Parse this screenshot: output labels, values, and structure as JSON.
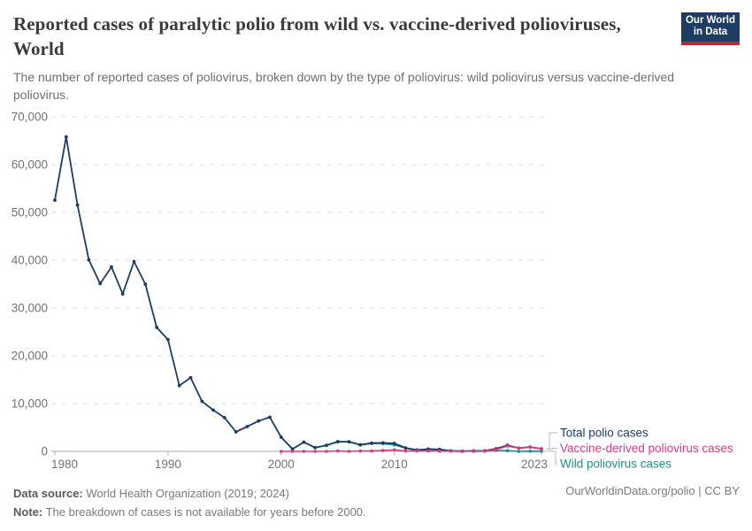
{
  "header": {
    "title": "Reported cases of paralytic polio from wild vs. vaccine-derived polioviruses, World",
    "subtitle": "The number of reported cases of poliovirus, broken down by the type of poliovirus: wild poliovirus versus vaccine-derived poliovirus.",
    "logo": {
      "line1": "Our World",
      "line2": "in Data",
      "bg_color": "#1d3d63",
      "accent_color": "#c0262c"
    }
  },
  "chart_data": {
    "type": "line",
    "title": "Reported cases of paralytic polio from wild vs. vaccine-derived polioviruses, World",
    "xlabel": "",
    "ylabel": "",
    "xlim": [
      1980,
      2023
    ],
    "ylim": [
      0,
      70000
    ],
    "xticks": [
      1980,
      1990,
      2000,
      2010,
      2023
    ],
    "yticks": [
      0,
      10000,
      20000,
      30000,
      40000,
      50000,
      60000,
      70000
    ],
    "grid": "horizontal-dashed",
    "legend_position": "right-of-line-ends",
    "series": [
      {
        "name": "Total polio cases",
        "color": "#1d3d63",
        "x": [
          1980,
          1981,
          1982,
          1983,
          1984,
          1985,
          1986,
          1987,
          1988,
          1989,
          1990,
          1991,
          1992,
          1993,
          1994,
          1995,
          1996,
          1997,
          1998,
          1999,
          2000,
          2001,
          2002,
          2003,
          2004,
          2005,
          2006,
          2007,
          2008,
          2009,
          2010,
          2011,
          2012,
          2013,
          2014,
          2015,
          2016,
          2017,
          2018,
          2019,
          2020,
          2021,
          2022,
          2023
        ],
        "values": [
          52552,
          65791,
          51532,
          40068,
          35087,
          38567,
          32942,
          39726,
          34974,
          25948,
          23365,
          13768,
          15406,
          10487,
          8635,
          7035,
          4074,
          5185,
          6349,
          7141,
          2971,
          486,
          1921,
          786,
          1257,
          2045,
          1999,
          1384,
          1719,
          1779,
          1660,
          717,
          291,
          482,
          415,
          106,
          42,
          118,
          137,
          554,
          1253,
          694,
          911,
          539
        ]
      },
      {
        "name": "Vaccine-derived poliovirus cases",
        "color": "#d73a87",
        "x": [
          2000,
          2001,
          2002,
          2003,
          2004,
          2005,
          2006,
          2007,
          2008,
          2009,
          2010,
          2011,
          2012,
          2013,
          2014,
          2015,
          2016,
          2017,
          2018,
          2019,
          2020,
          2021,
          2022,
          2023
        ],
        "values": [
          0,
          3,
          3,
          2,
          2,
          66,
          2,
          69,
          68,
          175,
          308,
          67,
          68,
          66,
          56,
          32,
          5,
          96,
          104,
          378,
          1113,
          688,
          881,
          527
        ]
      },
      {
        "name": "Wild poliovirus cases",
        "color": "#18918a",
        "x": [
          2000,
          2001,
          2002,
          2003,
          2004,
          2005,
          2006,
          2007,
          2008,
          2009,
          2010,
          2011,
          2012,
          2013,
          2014,
          2015,
          2016,
          2017,
          2018,
          2019,
          2020,
          2021,
          2022,
          2023
        ],
        "values": [
          2971,
          483,
          1918,
          784,
          1255,
          1979,
          1997,
          1315,
          1651,
          1604,
          1352,
          650,
          223,
          416,
          359,
          74,
          37,
          22,
          33,
          176,
          140,
          6,
          30,
          12
        ]
      }
    ],
    "draw_order": [
      2,
      0,
      1
    ]
  },
  "footer": {
    "source_label": "Data source:",
    "source_value": " World Health Organization (2019; 2024)",
    "note_label": "Note:",
    "note_value": " The breakdown of cases is not available for years before 2000.",
    "rights": "OurWorldinData.org/polio | CC BY"
  }
}
